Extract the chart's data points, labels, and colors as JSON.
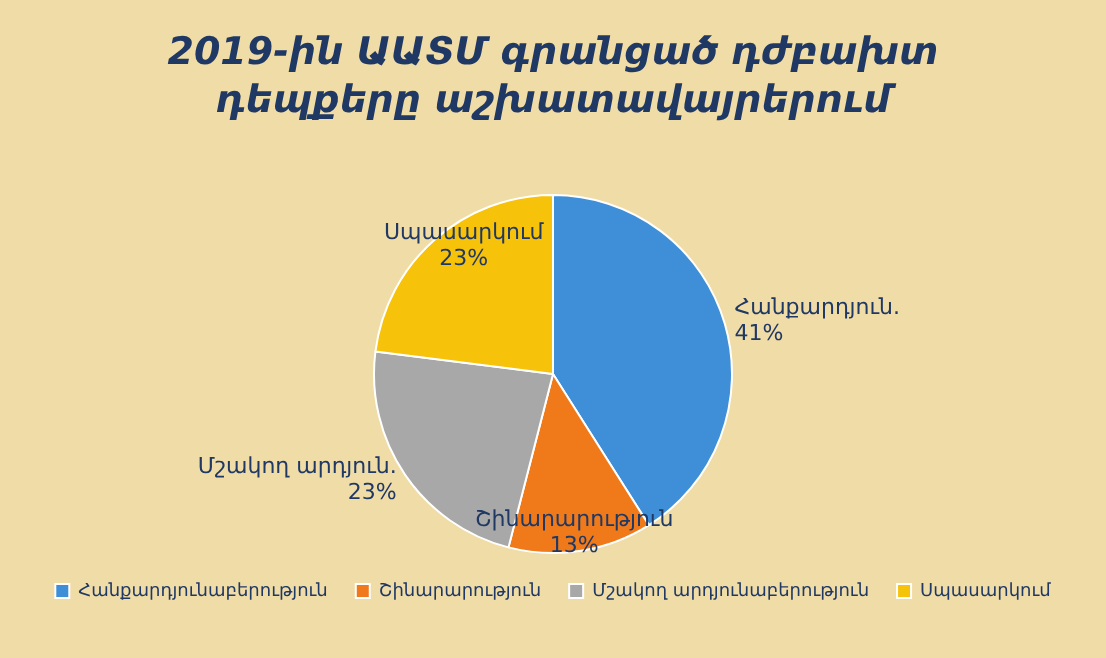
{
  "chart_data": {
    "type": "pie",
    "title": "2019-ին ԱԱՏՄ գրանցած դժբախտ դեպքերը աշխատավայրերում",
    "categories": [
      "Հանքարդյունաբերություն",
      "Շինարարություն",
      "Մշակող արդյունաբերություն",
      "Սպասարկում"
    ],
    "values": [
      41,
      13,
      23,
      23
    ],
    "colors": [
      "#3f8fd8",
      "#f07a1a",
      "#a8a8a8",
      "#f7c20a"
    ],
    "value_labels": [
      "Հանքարդյուն.\n41%",
      "Շինարարություն\n13%",
      "Մշակող արդյուն.\n23%",
      "Սպասարկում\n23%"
    ],
    "legend": "bottom"
  }
}
